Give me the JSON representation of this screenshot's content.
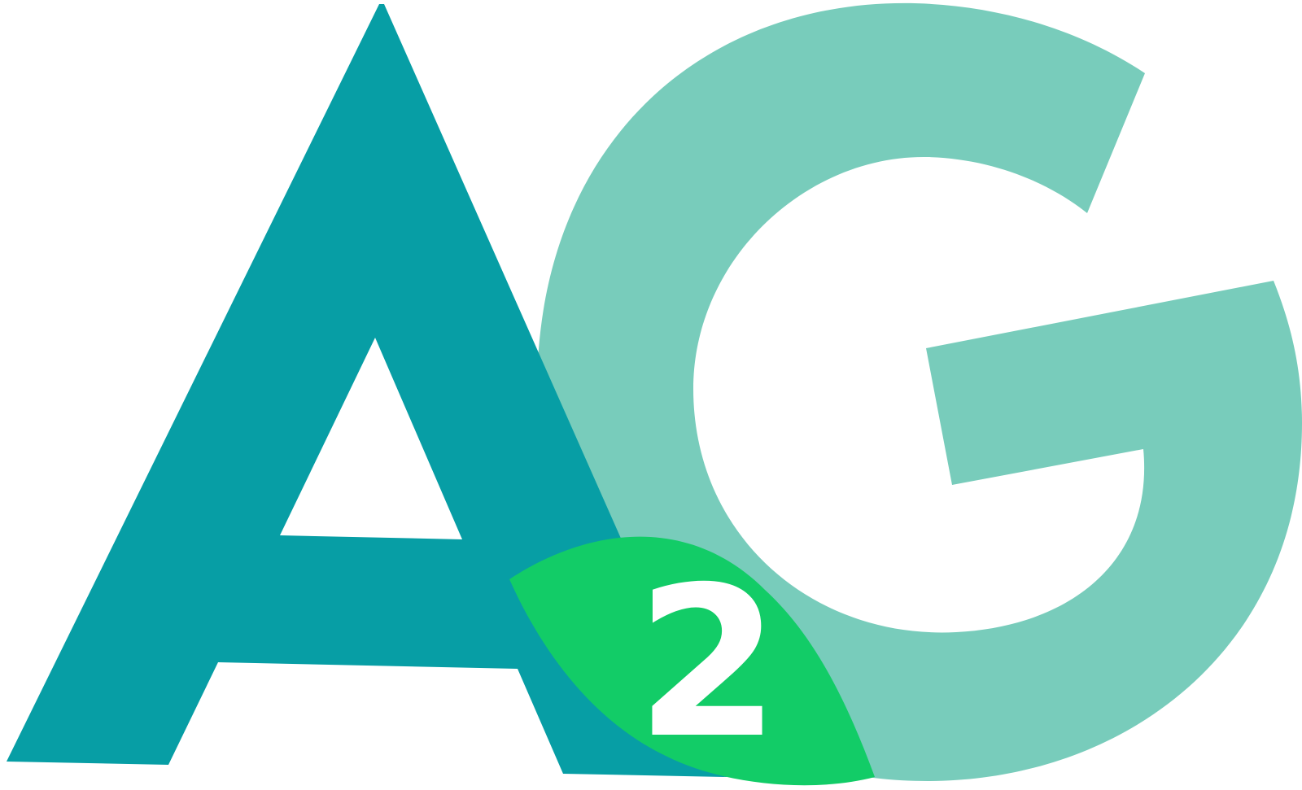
{
  "logo": {
    "text": "AG2",
    "letter_a": "A",
    "letter_g": "G",
    "digit": "2",
    "colors": {
      "a_fill": "#079EA5",
      "g_fill": "#78CCBB",
      "leaf_fill": "#12CC67",
      "digit_fill": "#FFFFFF",
      "background": "#FFFFFF"
    }
  }
}
